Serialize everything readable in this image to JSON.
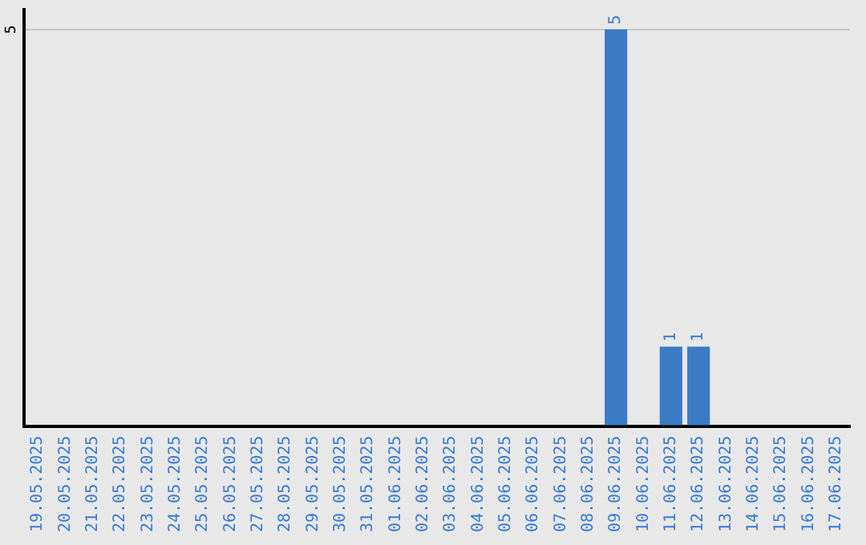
{
  "chart_data": {
    "type": "bar",
    "categories": [
      "19.05.2025",
      "20.05.2025",
      "21.05.2025",
      "22.05.2025",
      "23.05.2025",
      "24.05.2025",
      "25.05.2025",
      "26.05.2025",
      "27.05.2025",
      "28.05.2025",
      "29.05.2025",
      "30.05.2025",
      "31.05.2025",
      "01.06.2025",
      "02.06.2025",
      "03.06.2025",
      "04.06.2025",
      "05.06.2025",
      "06.06.2025",
      "07.06.2025",
      "08.06.2025",
      "09.06.2025",
      "10.06.2025",
      "11.06.2025",
      "12.06.2025",
      "13.06.2025",
      "14.06.2025",
      "15.06.2025",
      "16.06.2025",
      "17.06.2025"
    ],
    "values": [
      null,
      null,
      null,
      null,
      null,
      null,
      null,
      null,
      null,
      null,
      null,
      null,
      null,
      null,
      null,
      null,
      null,
      null,
      null,
      null,
      null,
      5,
      null,
      1,
      1,
      null,
      null,
      null,
      null,
      null
    ],
    "value_labels": [
      null,
      null,
      null,
      null,
      null,
      null,
      null,
      null,
      null,
      null,
      null,
      null,
      null,
      null,
      null,
      null,
      null,
      null,
      null,
      null,
      null,
      "5",
      null,
      "1",
      "1",
      null,
      null,
      null,
      null,
      null
    ],
    "color": "#3b7bc4",
    "ylim": [
      0,
      5.25
    ],
    "yticks": [
      {
        "value": 0,
        "label": null
      },
      5
    ],
    "grid": "y"
  }
}
